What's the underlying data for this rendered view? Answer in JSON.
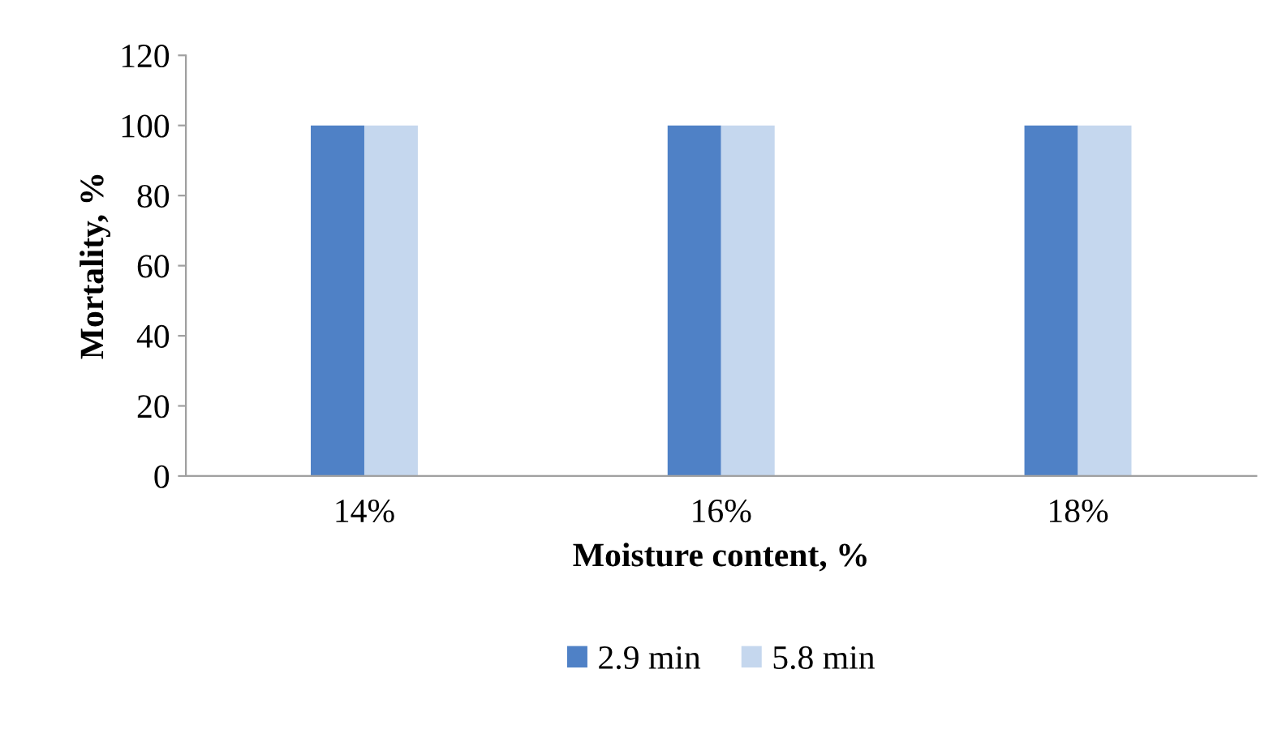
{
  "chart_data": {
    "type": "bar",
    "xlabel": "Moisture content, %",
    "ylabel": "Mortality, %",
    "categories": [
      "14%",
      "16%",
      "18%"
    ],
    "series": [
      {
        "name": "2.9 min",
        "color": "#4f81c6",
        "values": [
          100,
          100,
          100
        ]
      },
      {
        "name": "5.8 min",
        "color": "#c5d7ee",
        "values": [
          100,
          100,
          100
        ]
      }
    ],
    "ylim": [
      0,
      120
    ],
    "yticks": [
      0,
      20,
      40,
      60,
      80,
      100,
      120
    ],
    "grid": false,
    "legend": "bottom"
  }
}
